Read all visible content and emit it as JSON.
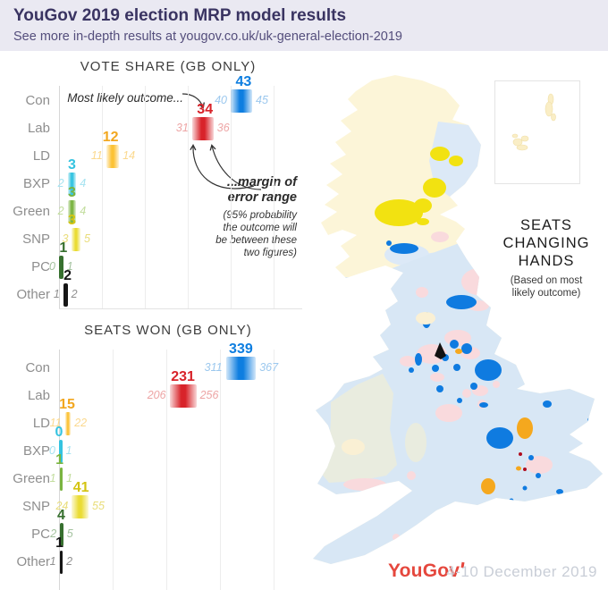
{
  "header": {
    "title": "YouGov 2019 election MRP model results",
    "subtitle": "See more in-depth results at yougov.co.uk/uk-general-election-2019"
  },
  "parties": [
    {
      "name": "Con",
      "color": "#0e7ee0",
      "soft": "#9cc8ee"
    },
    {
      "name": "Lab",
      "color": "#d8232a",
      "soft": "#eda5a5"
    },
    {
      "name": "LD",
      "color": "#f2a71f",
      "soft": "#fbd98f",
      "bar": "#fcc235"
    },
    {
      "name": "BXP",
      "color": "#34c3e0",
      "soft": "#a5e3f1"
    },
    {
      "name": "Green",
      "color": "#7ab441",
      "soft": "#c2dd9d"
    },
    {
      "name": "SNP",
      "color": "#d4c412",
      "soft": "#e9dd7a",
      "bar": "#eadc35"
    },
    {
      "name": "PC",
      "color": "#37702f",
      "soft": "#a3c29e"
    },
    {
      "name": "Other",
      "color": "#161616",
      "soft": "#8f8f8f"
    }
  ],
  "chart_data": [
    {
      "id": "vote-share",
      "type": "bar",
      "orientation": "horizontal",
      "title": "VOTE SHARE (GB ONLY)",
      "categories": [
        "Con",
        "Lab",
        "LD",
        "BXP",
        "Green",
        "SNP",
        "PC",
        "Other"
      ],
      "series": [
        {
          "name": "most_likely",
          "values": [
            43,
            34,
            12,
            3,
            3,
            3,
            1,
            2
          ]
        },
        {
          "name": "low",
          "values": [
            40,
            31,
            11,
            2,
            2,
            3,
            0,
            1
          ]
        },
        {
          "name": "high",
          "values": [
            45,
            36,
            14,
            4,
            4,
            5,
            1,
            2
          ]
        }
      ],
      "xlim": [
        0,
        58
      ],
      "grid_step": 10,
      "legend": "none",
      "annotations": {
        "most_likely": "Most likely outcome...",
        "margin": "...margin of error range",
        "margin_note": "(95% probability the outcome will be between these two figures)"
      }
    },
    {
      "id": "seats-won",
      "type": "bar",
      "orientation": "horizontal",
      "title": "SEATS WON (GB ONLY)",
      "categories": [
        "Con",
        "Lab",
        "LD",
        "BXP",
        "Green",
        "SNP",
        "PC",
        "Other"
      ],
      "series": [
        {
          "name": "most_likely",
          "values": [
            339,
            231,
            15,
            0,
            1,
            41,
            4,
            1
          ]
        },
        {
          "name": "low",
          "values": [
            311,
            206,
            11,
            0,
            1,
            24,
            2,
            1
          ]
        },
        {
          "name": "high",
          "values": [
            367,
            256,
            22,
            1,
            1,
            55,
            5,
            2
          ]
        }
      ],
      "xlim": [
        0,
        470
      ],
      "grid_step": 100,
      "legend": "none"
    }
  ],
  "map": {
    "label_title": "SEATS CHANGING HANDS",
    "label_sub": "(Based on most likely outcome)",
    "colors": {
      "pale_yellow": "#fcf5d8",
      "pale_blue": "#d8e7f5",
      "pale_blue2": "#dce9f7",
      "bright_yellow": "#f2e211",
      "bright_blue": "#0f7be0",
      "pale_pink": "#f9dadd",
      "dark_red": "#b00d1e",
      "orange": "#f5a81e",
      "sage": "#e9ecdf",
      "cream": "#faf0d4",
      "black": "#121212",
      "inset_island": "#faeec6",
      "inset_edge": "#f0dfa8"
    }
  },
  "footer": {
    "logo": "YouGov",
    "date": "4-10 December 2019"
  }
}
